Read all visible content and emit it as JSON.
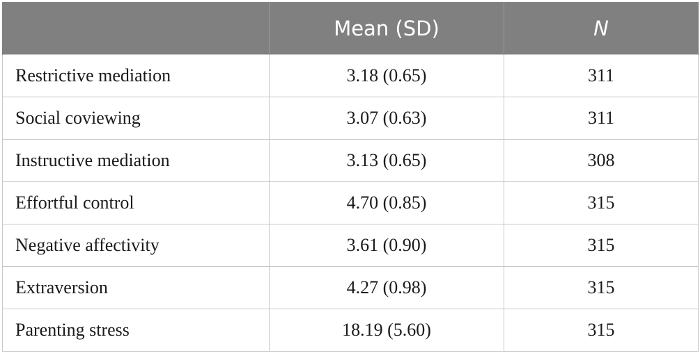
{
  "table": {
    "headers": {
      "variable": "",
      "mean_sd": "Mean (SD)",
      "n": "N"
    },
    "rows": [
      {
        "label": "Restrictive mediation",
        "mean_sd": "3.18 (0.65)",
        "n": "311"
      },
      {
        "label": "Social coviewing",
        "mean_sd": "3.07 (0.63)",
        "n": "311"
      },
      {
        "label": "Instructive mediation",
        "mean_sd": "3.13 (0.65)",
        "n": "308"
      },
      {
        "label": "Effortful control",
        "mean_sd": "4.70 (0.85)",
        "n": "315"
      },
      {
        "label": "Negative affectivity",
        "mean_sd": "3.61 (0.90)",
        "n": "315"
      },
      {
        "label": "Extraversion",
        "mean_sd": "4.27 (0.98)",
        "n": "315"
      },
      {
        "label": "Parenting stress",
        "mean_sd": "18.19 (5.60)",
        "n": "315"
      }
    ]
  },
  "colors": {
    "header_bg": "#808080",
    "header_text": "#ffffff",
    "border": "#c8c8c8"
  }
}
